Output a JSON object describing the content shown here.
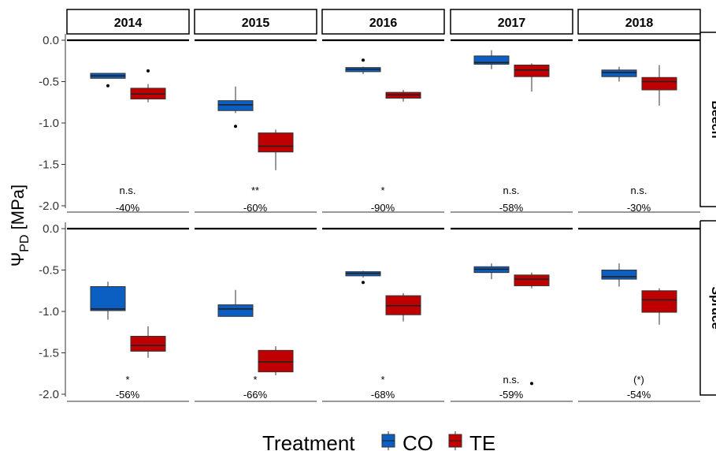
{
  "chart_data": {
    "type": "boxplot",
    "facet_columns": [
      "2014",
      "2015",
      "2016",
      "2017",
      "2018"
    ],
    "facet_rows": [
      "Beech",
      "Spruce"
    ],
    "ylabel_main": "Ψ",
    "ylabel_sub": "PD",
    "ylabel_unit": " [MPa]",
    "ylim": [
      -2.1,
      0.0
    ],
    "yticks": [
      0.0,
      -0.5,
      -1.0,
      -1.5,
      -2.0
    ],
    "ytick_labels": [
      "0.0",
      "-0.5",
      "-1.0",
      "-1.5",
      "-2.0"
    ],
    "legend": {
      "title": "Treatment",
      "position": "bottom",
      "items": [
        {
          "label": "CO",
          "color": "#0b5fc2"
        },
        {
          "label": "TE",
          "color": "#c00000"
        }
      ]
    },
    "panels": [
      {
        "row": "Beech",
        "col": "2014",
        "sig": "n.s.",
        "pct": "-40%",
        "boxes": [
          {
            "treatment": "CO",
            "q1": -0.46,
            "median": -0.43,
            "q3": -0.4,
            "whisker_low": -0.46,
            "whisker_high": -0.4,
            "outliers": [
              -0.55
            ]
          },
          {
            "treatment": "TE",
            "q1": -0.71,
            "median": -0.65,
            "q3": -0.58,
            "whisker_low": -0.75,
            "whisker_high": -0.53,
            "outliers": [
              -0.37
            ]
          }
        ]
      },
      {
        "row": "Beech",
        "col": "2015",
        "sig": "**",
        "pct": "-60%",
        "boxes": [
          {
            "treatment": "CO",
            "q1": -0.85,
            "median": -0.78,
            "q3": -0.73,
            "whisker_low": -0.88,
            "whisker_high": -0.56,
            "outliers": [
              -1.04
            ]
          },
          {
            "treatment": "TE",
            "q1": -1.35,
            "median": -1.28,
            "q3": -1.12,
            "whisker_low": -1.57,
            "whisker_high": -1.08,
            "outliers": []
          }
        ]
      },
      {
        "row": "Beech",
        "col": "2016",
        "sig": "*",
        "pct": "-90%",
        "boxes": [
          {
            "treatment": "CO",
            "q1": -0.38,
            "median": -0.35,
            "q3": -0.33,
            "whisker_low": -0.41,
            "whisker_high": -0.32,
            "outliers": [
              -0.24
            ]
          },
          {
            "treatment": "TE",
            "q1": -0.7,
            "median": -0.66,
            "q3": -0.63,
            "whisker_low": -0.74,
            "whisker_high": -0.6,
            "outliers": []
          }
        ]
      },
      {
        "row": "Beech",
        "col": "2017",
        "sig": "n.s.",
        "pct": "-58%",
        "boxes": [
          {
            "treatment": "CO",
            "q1": -0.29,
            "median": -0.27,
            "q3": -0.19,
            "whisker_low": -0.35,
            "whisker_high": -0.12,
            "outliers": []
          },
          {
            "treatment": "TE",
            "q1": -0.44,
            "median": -0.36,
            "q3": -0.3,
            "whisker_low": -0.62,
            "whisker_high": -0.28,
            "outliers": []
          }
        ]
      },
      {
        "row": "Beech",
        "col": "2018",
        "sig": "n.s.",
        "pct": "-30%",
        "boxes": [
          {
            "treatment": "CO",
            "q1": -0.44,
            "median": -0.39,
            "q3": -0.36,
            "whisker_low": -0.5,
            "whisker_high": -0.32,
            "outliers": []
          },
          {
            "treatment": "TE",
            "q1": -0.6,
            "median": -0.5,
            "q3": -0.45,
            "whisker_low": -0.79,
            "whisker_high": -0.3,
            "outliers": []
          }
        ]
      },
      {
        "row": "Spruce",
        "col": "2014",
        "sig": "*",
        "pct": "-56%",
        "boxes": [
          {
            "treatment": "CO",
            "q1": -0.99,
            "median": -0.97,
            "q3": -0.7,
            "whisker_low": -1.1,
            "whisker_high": -0.64,
            "outliers": []
          },
          {
            "treatment": "TE",
            "q1": -1.48,
            "median": -1.41,
            "q3": -1.3,
            "whisker_low": -1.56,
            "whisker_high": -1.18,
            "outliers": []
          }
        ]
      },
      {
        "row": "Spruce",
        "col": "2015",
        "sig": "*",
        "pct": "-66%",
        "boxes": [
          {
            "treatment": "CO",
            "q1": -1.06,
            "median": -0.97,
            "q3": -0.92,
            "whisker_low": -1.06,
            "whisker_high": -0.74,
            "outliers": []
          },
          {
            "treatment": "TE",
            "q1": -1.73,
            "median": -1.61,
            "q3": -1.47,
            "whisker_low": -1.77,
            "whisker_high": -1.42,
            "outliers": []
          }
        ]
      },
      {
        "row": "Spruce",
        "col": "2016",
        "sig": "*",
        "pct": "-68%",
        "boxes": [
          {
            "treatment": "CO",
            "q1": -0.57,
            "median": -0.54,
            "q3": -0.52,
            "whisker_low": -0.59,
            "whisker_high": -0.51,
            "outliers": [
              -0.65
            ]
          },
          {
            "treatment": "TE",
            "q1": -1.04,
            "median": -0.93,
            "q3": -0.81,
            "whisker_low": -1.12,
            "whisker_high": -0.78,
            "outliers": []
          }
        ]
      },
      {
        "row": "Spruce",
        "col": "2017",
        "sig": "n.s.",
        "pct": "-59%",
        "boxes": [
          {
            "treatment": "CO",
            "q1": -0.53,
            "median": -0.49,
            "q3": -0.46,
            "whisker_low": -0.61,
            "whisker_high": -0.42,
            "outliers": []
          },
          {
            "treatment": "TE",
            "q1": -0.69,
            "median": -0.61,
            "q3": -0.56,
            "whisker_low": -0.72,
            "whisker_high": -0.53,
            "outliers": [
              -1.87
            ]
          }
        ]
      },
      {
        "row": "Spruce",
        "col": "2018",
        "sig": "(*)",
        "pct": "-54%",
        "boxes": [
          {
            "treatment": "CO",
            "q1": -0.61,
            "median": -0.58,
            "q3": -0.5,
            "whisker_low": -0.7,
            "whisker_high": -0.42,
            "outliers": []
          },
          {
            "treatment": "TE",
            "q1": -1.01,
            "median": -0.86,
            "q3": -0.75,
            "whisker_low": -1.16,
            "whisker_high": -0.72,
            "outliers": []
          }
        ]
      }
    ]
  }
}
